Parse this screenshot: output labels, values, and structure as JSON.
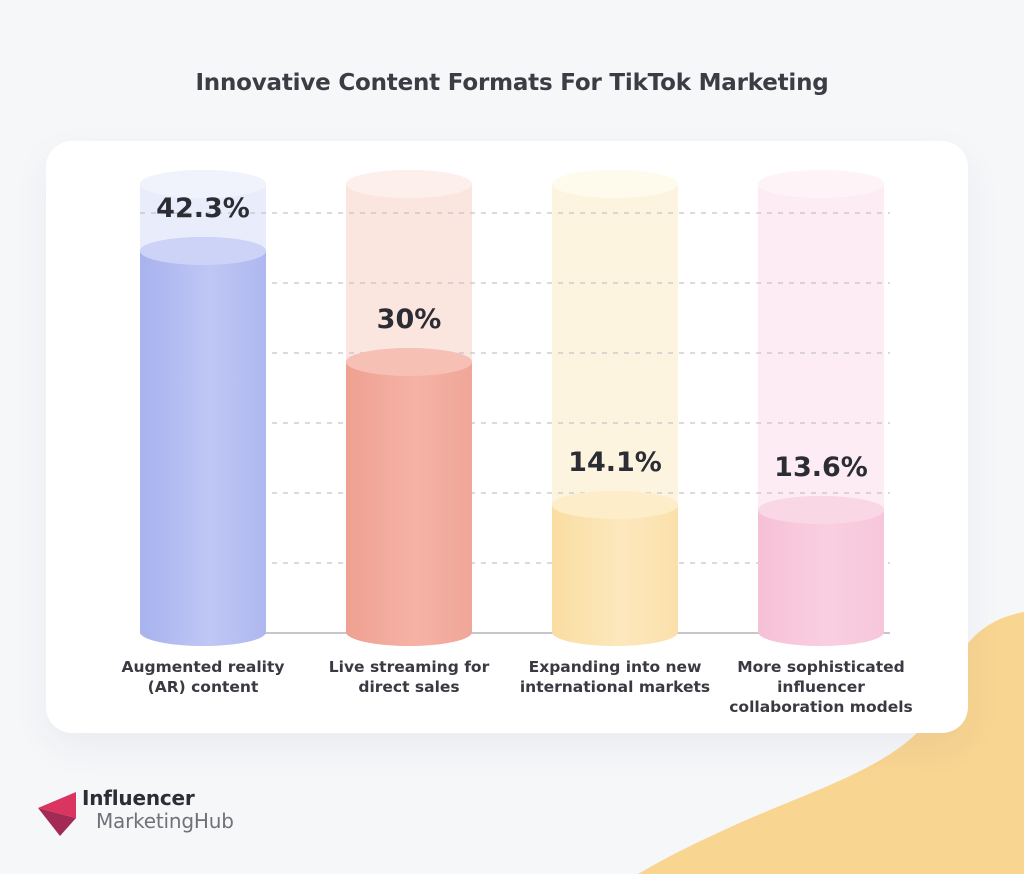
{
  "page": {
    "background": "#f6f7f9"
  },
  "title": "Innovative Content Formats For TikTok Marketing",
  "chart_data": {
    "type": "bar",
    "title": "Innovative Content Formats For TikTok Marketing",
    "categories": [
      "Augmented reality (AR) content",
      "Live streaming for direct sales",
      "Expanding into new international markets",
      "More sophisticated influencer collaboration models"
    ],
    "values": [
      42.3,
      30,
      14.1,
      13.6
    ],
    "value_labels": [
      "42.3%",
      "30%",
      "14.1%",
      "13.6%"
    ],
    "unit": "%",
    "ylim": [
      0,
      52
    ],
    "grid": "horizontal-dashed",
    "gridline_count": 6,
    "legend": "none",
    "bar_style": "3d cylinder with full-height pale ghost track",
    "bar_colors": [
      "#b5bef1",
      "#f3a89b",
      "#fbe2ae",
      "#f8c7db"
    ]
  },
  "bars": [
    {
      "label_lines": [
        "Augmented reality",
        "(AR) content"
      ],
      "value": 42.3,
      "display": "42.3%",
      "body_from": "#a8b2ee",
      "body_mid": "#bfc7f4",
      "body_to": "#aeb8f0",
      "top": "#cdd3f7",
      "ghost": "#e9ecfa",
      "ghost_top": "#f1f3fc"
    },
    {
      "label_lines": [
        "Live streaming for",
        "direct sales"
      ],
      "value": 30,
      "display": "30%",
      "body_from": "#efa091",
      "body_mid": "#f5b3a6",
      "body_to": "#f0a698",
      "top": "#f7c0b5",
      "ghost": "#fbe5df",
      "ghost_top": "#fdefec"
    },
    {
      "label_lines": [
        "Expanding into new",
        "international markets"
      ],
      "value": 14.1,
      "display": "14.1%",
      "body_from": "#fadda1",
      "body_mid": "#fce8bd",
      "body_to": "#fbe0ab",
      "top": "#fdedc9",
      "ghost": "#fdf4df",
      "ghost_top": "#fefaec"
    },
    {
      "label_lines": [
        "More sophisticated",
        "influencer",
        "collaboration models"
      ],
      "value": 13.6,
      "display": "13.6%",
      "body_from": "#f6c0d6",
      "body_mid": "#f9cfe0",
      "body_to": "#f7c6da",
      "top": "#fad7e5",
      "ghost": "#fdecf3",
      "ghost_top": "#fef4f8"
    }
  ],
  "logo": {
    "line1": "Influencer",
    "line2": "MarketingHub",
    "icon": "pink-arrow",
    "icon_color": "#d93560",
    "icon_color_dark": "#a32a55",
    "line1_color": "#2d2c37",
    "line2_color": "#71717a"
  },
  "decor": {
    "blob_color": "#f9d592"
  },
  "colors": {
    "grid": "#bdbdc4",
    "baseline": "#c6c6cc",
    "value_label": "#2c2c34",
    "category_label": "#3a3a42",
    "title": "#3c3c45",
    "card": "#ffffff"
  }
}
